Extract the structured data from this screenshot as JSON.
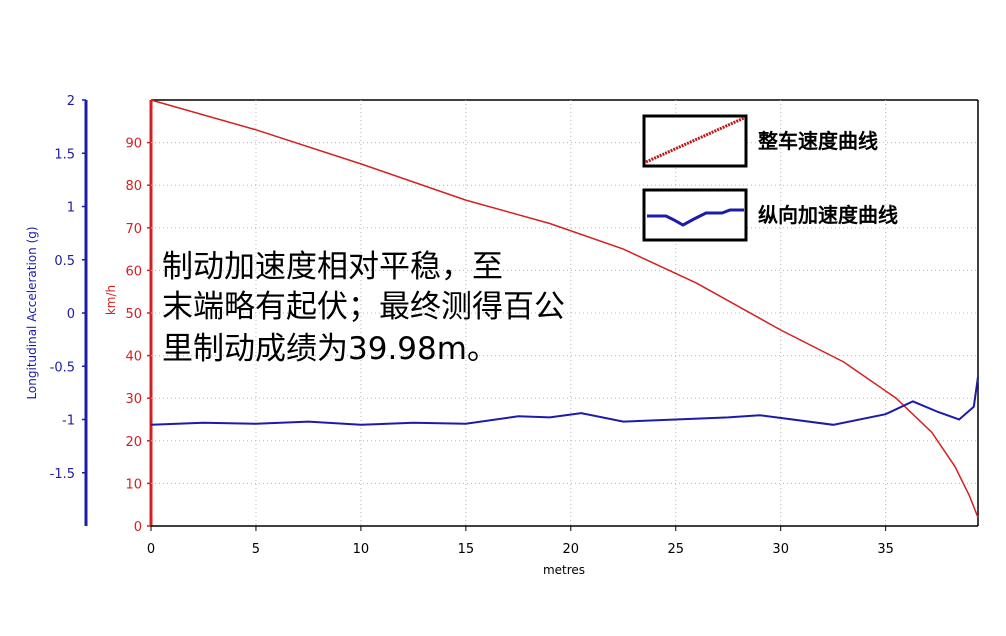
{
  "chart_data": {
    "type": "line",
    "xlabel": "metres",
    "xlim": [
      0,
      39.4
    ],
    "xticks": [
      "0",
      "5",
      "10",
      "15",
      "20",
      "25",
      "30",
      "35"
    ],
    "y_left": {
      "label": "Longitudinal Acceleration (g)",
      "range": [
        -2,
        2
      ],
      "ticks": [
        "2",
        "1.5",
        "1",
        "0.5",
        "0",
        "-0.5",
        "-1",
        "-1.5"
      ],
      "color": "#1c1ca8"
    },
    "y_right": {
      "label": "km/h",
      "range": [
        0,
        100
      ],
      "ticks": [
        "90",
        "80",
        "70",
        "60",
        "50",
        "40",
        "30",
        "20",
        "10",
        "0"
      ],
      "color": "#d42020"
    },
    "grid": "dotted",
    "series": [
      {
        "name": "整车速度曲线",
        "axis": "right",
        "color": "#d42020",
        "x": [
          0,
          5,
          10,
          15,
          19,
          22.5,
          26,
          30,
          33,
          35.5,
          37.2,
          38.3,
          39.0,
          39.4
        ],
        "y": [
          100,
          93,
          85,
          76.5,
          71,
          65,
          57,
          46,
          38.5,
          30,
          22,
          14,
          7,
          2
        ]
      },
      {
        "name": "纵向加速度曲线",
        "axis": "left",
        "color": "#1c1ca8",
        "x": [
          0,
          2.5,
          5,
          7.5,
          10,
          12.5,
          15,
          17.5,
          19,
          20.5,
          22.5,
          25,
          27.5,
          29,
          32.5,
          35,
          36.3,
          37.5,
          38.5,
          39.2,
          39.4
        ],
        "y": [
          -1.05,
          -1.03,
          -1.04,
          -1.02,
          -1.05,
          -1.03,
          -1.04,
          -0.97,
          -0.98,
          -0.94,
          -1.02,
          -1.0,
          -0.98,
          -0.96,
          -1.05,
          -0.95,
          -0.83,
          -0.93,
          -1.0,
          -0.88,
          -0.6
        ]
      }
    ]
  },
  "legend": {
    "items": [
      {
        "label": "整车速度曲线",
        "color": "#d42020"
      },
      {
        "label": "纵向加速度曲线",
        "color": "#1c1ca8"
      }
    ]
  },
  "annotation": {
    "lines": [
      "制动加速度相对平稳，至",
      "末端略有起伏；最终测得百公",
      "里制动成绩为39.98m。"
    ]
  }
}
